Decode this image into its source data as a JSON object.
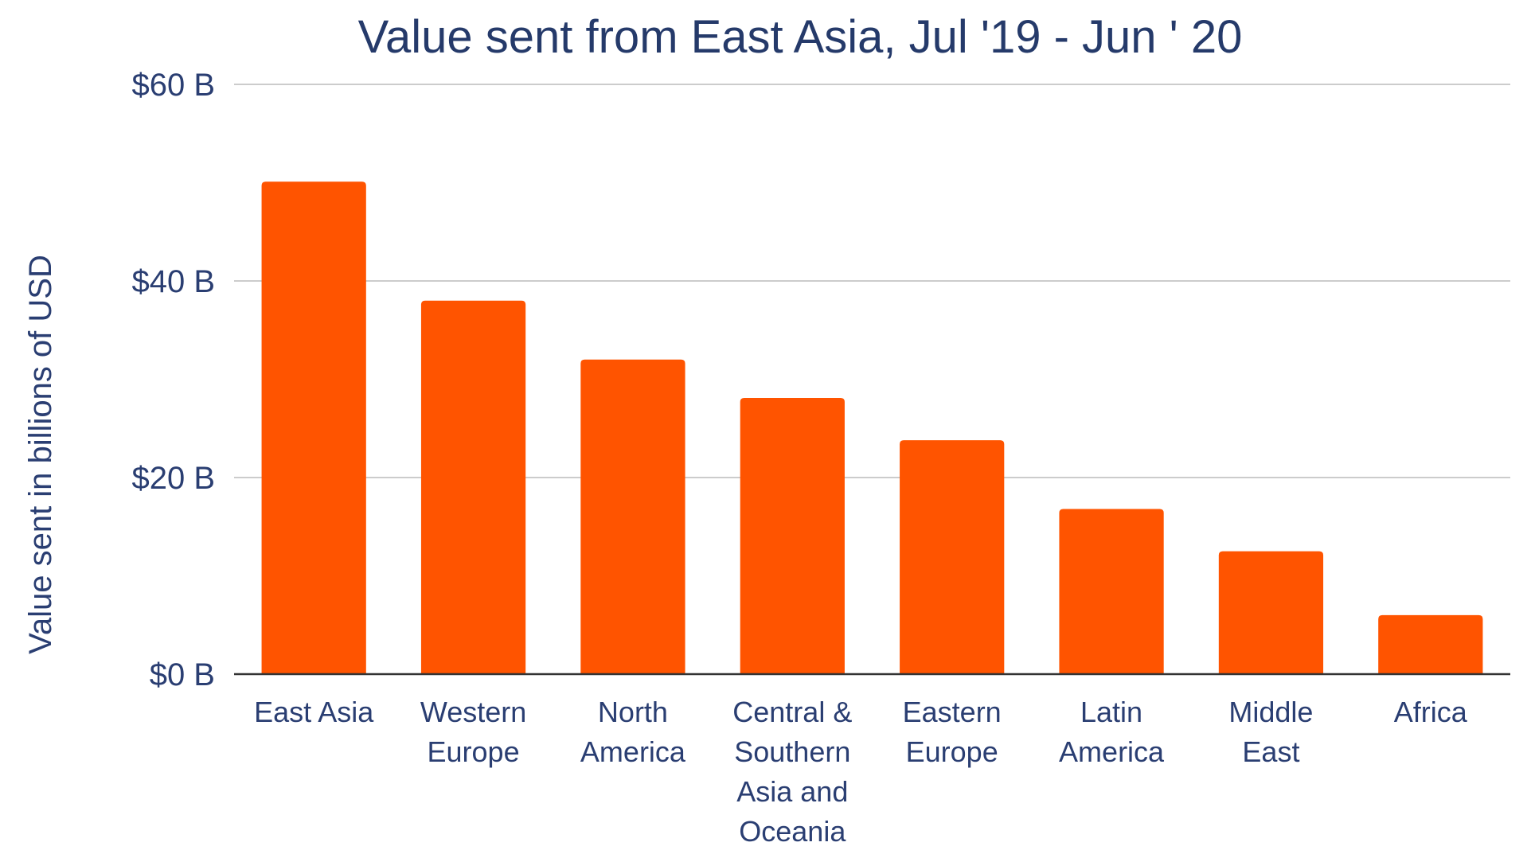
{
  "chart_data": {
    "type": "bar",
    "title": "Value sent from East Asia, Jul '19 - Jun ' 20",
    "xlabel": "",
    "ylabel": "Value sent in billions of USD",
    "categories": [
      "East Asia",
      "Western Europe",
      "North America",
      "Central & Southern Asia and Oceania",
      "Eastern Europe",
      "Latin America",
      "Middle East",
      "Africa"
    ],
    "category_label_lines": [
      [
        "East Asia"
      ],
      [
        "Western",
        "Europe"
      ],
      [
        "North",
        "America"
      ],
      [
        "Central &",
        "Southern",
        "Asia and",
        "Oceania"
      ],
      [
        "Eastern",
        "Europe"
      ],
      [
        "Latin",
        "America"
      ],
      [
        "Middle",
        "East"
      ],
      [
        "Africa"
      ]
    ],
    "values": [
      50.1,
      38,
      32,
      28.1,
      23.8,
      16.8,
      12.5,
      6
    ],
    "ylim": [
      0,
      60
    ],
    "y_ticks": [
      0,
      20,
      40,
      60
    ],
    "y_tick_labels": [
      "$0 B",
      "$20 B",
      "$40 B",
      "$60 B"
    ],
    "grid": true,
    "legend": "none",
    "colors": {
      "bar": "#ff5400",
      "text": "#2a3e72",
      "title": "#253a6a",
      "grid": "#cccccc",
      "baseline": "#333333"
    }
  }
}
